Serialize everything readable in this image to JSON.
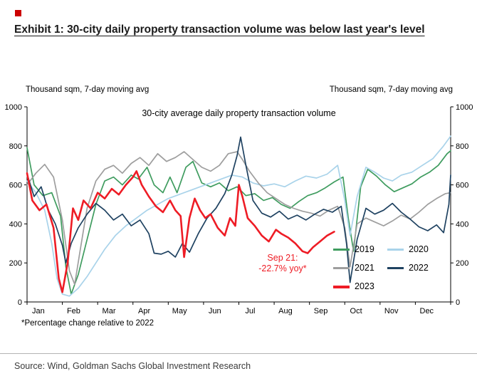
{
  "exhibit": {
    "bullet_color": "#cc0000",
    "title": "Exhibit 1: 30-city daily property transaction volume was below last year's level"
  },
  "axis_caption_left": "Thousand sqm, 7-day moving avg",
  "axis_caption_right": "Thousand sqm, 7-day moving avg",
  "footnote": "*Percentage change relative to 2022",
  "source": "Source: Wind, Goldman Sachs Global Investment Research",
  "chart_data": {
    "type": "line",
    "title": "30-city average daily property transaction volume",
    "x_unit": "month-of-year (0 = Jan 1, 12 = Dec 31)",
    "x_tick_labels": [
      "Jan",
      "Feb",
      "Mar",
      "Apr",
      "May",
      "Jun",
      "Jul",
      "Aug",
      "Sep",
      "Oct",
      "Nov",
      "Dec"
    ],
    "ylim": [
      0,
      1000
    ],
    "y_ticks": [
      0,
      200,
      400,
      600,
      800,
      1000
    ],
    "legend_position": "inside-bottom-right",
    "grid": false,
    "annotation": {
      "lines": [
        "Sep 21:",
        "-22.7% yoy*"
      ],
      "color": "#ee1c25",
      "x": 7.24,
      "y": 212
    },
    "series": [
      {
        "name": "2019",
        "color": "#3f9c5f",
        "width": 1.7,
        "x": [
          0,
          0.2,
          0.45,
          0.7,
          0.95,
          1.1,
          1.25,
          1.45,
          1.7,
          1.95,
          2.2,
          2.45,
          2.7,
          2.95,
          3.15,
          3.4,
          3.6,
          3.85,
          4.05,
          4.25,
          4.5,
          4.7,
          4.95,
          5.2,
          5.45,
          5.7,
          5.95,
          6.2,
          6.45,
          6.7,
          6.95,
          7.2,
          7.45,
          7.7,
          7.95,
          8.2,
          8.45,
          8.7,
          8.95,
          9.1,
          9.25,
          9.45,
          9.65,
          9.9,
          10.15,
          10.4,
          10.65,
          10.9,
          11.15,
          11.4,
          11.65,
          11.9,
          12
        ],
        "values": [
          790,
          600,
          545,
          560,
          440,
          180,
          40,
          140,
          320,
          500,
          620,
          640,
          600,
          650,
          630,
          690,
          600,
          560,
          640,
          560,
          690,
          720,
          610,
          590,
          610,
          570,
          590,
          545,
          555,
          520,
          535,
          500,
          480,
          515,
          545,
          560,
          585,
          615,
          640,
          430,
          260,
          590,
          680,
          645,
          600,
          565,
          585,
          605,
          640,
          665,
          700,
          760,
          775
        ]
      },
      {
        "name": "2020",
        "color": "#a9d3ea",
        "width": 1.7,
        "x": [
          0,
          0.25,
          0.5,
          0.7,
          0.85,
          1.0,
          1.2,
          1.45,
          1.7,
          1.95,
          2.2,
          2.5,
          2.8,
          3.1,
          3.4,
          3.7,
          4.0,
          4.3,
          4.6,
          4.9,
          5.2,
          5.5,
          5.8,
          6.1,
          6.4,
          6.7,
          7.0,
          7.3,
          7.6,
          7.9,
          8.2,
          8.5,
          8.8,
          9.0,
          9.15,
          9.35,
          9.6,
          9.85,
          10.1,
          10.35,
          10.6,
          10.9,
          11.2,
          11.5,
          11.8,
          12
        ],
        "values": [
          620,
          560,
          470,
          300,
          120,
          40,
          30,
          70,
          130,
          200,
          270,
          340,
          390,
          430,
          470,
          500,
          530,
          550,
          570,
          590,
          610,
          630,
          650,
          640,
          610,
          595,
          605,
          590,
          620,
          645,
          635,
          655,
          700,
          520,
          340,
          540,
          690,
          665,
          635,
          620,
          650,
          665,
          700,
          735,
          800,
          850
        ]
      },
      {
        "name": "2021",
        "color": "#9e9e9e",
        "width": 1.7,
        "x": [
          0,
          0.25,
          0.5,
          0.75,
          1.0,
          1.2,
          1.35,
          1.5,
          1.7,
          1.95,
          2.2,
          2.45,
          2.7,
          2.95,
          3.2,
          3.45,
          3.7,
          3.95,
          4.2,
          4.45,
          4.7,
          4.95,
          5.2,
          5.45,
          5.7,
          5.95,
          6.1,
          6.3,
          6.55,
          6.8,
          7.05,
          7.3,
          7.55,
          7.8,
          8.05,
          8.3,
          8.55,
          8.8,
          9.0,
          9.15,
          9.35,
          9.6,
          9.85,
          10.1,
          10.35,
          10.6,
          10.85,
          11.1,
          11.35,
          11.6,
          11.85,
          12
        ],
        "values": [
          600,
          660,
          705,
          640,
          420,
          160,
          90,
          260,
          480,
          620,
          680,
          700,
          660,
          710,
          740,
          700,
          760,
          720,
          740,
          770,
          730,
          690,
          670,
          700,
          760,
          770,
          730,
          670,
          610,
          560,
          530,
          500,
          480,
          465,
          455,
          440,
          470,
          490,
          380,
          180,
          400,
          430,
          410,
          390,
          415,
          445,
          425,
          460,
          500,
          530,
          555,
          560
        ]
      },
      {
        "name": "2022",
        "color": "#1f4261",
        "width": 1.7,
        "x": [
          0,
          0.2,
          0.4,
          0.6,
          0.8,
          1.0,
          1.1,
          1.25,
          1.45,
          1.7,
          1.95,
          2.2,
          2.45,
          2.7,
          2.95,
          3.2,
          3.45,
          3.6,
          3.8,
          4.0,
          4.2,
          4.4,
          4.6,
          4.85,
          5.1,
          5.35,
          5.6,
          5.8,
          5.95,
          6.05,
          6.2,
          6.4,
          6.65,
          6.9,
          7.15,
          7.4,
          7.65,
          7.9,
          8.15,
          8.4,
          8.65,
          8.9,
          9.05,
          9.15,
          9.35,
          9.6,
          9.85,
          10.1,
          10.35,
          10.6,
          10.85,
          11.1,
          11.35,
          11.6,
          11.8,
          11.95,
          12
        ],
        "values": [
          655,
          540,
          590,
          470,
          400,
          290,
          200,
          300,
          380,
          450,
          505,
          470,
          420,
          450,
          390,
          420,
          350,
          250,
          245,
          260,
          230,
          300,
          255,
          350,
          430,
          480,
          555,
          650,
          750,
          845,
          700,
          520,
          455,
          435,
          465,
          425,
          445,
          420,
          450,
          475,
          460,
          490,
          300,
          100,
          320,
          480,
          450,
          470,
          505,
          460,
          425,
          385,
          365,
          395,
          355,
          500,
          650
        ]
      },
      {
        "name": "2023",
        "color": "#ee1c25",
        "width": 2.6,
        "x": [
          0,
          0.15,
          0.35,
          0.55,
          0.75,
          0.9,
          1.0,
          1.15,
          1.3,
          1.45,
          1.6,
          1.8,
          2.0,
          2.2,
          2.4,
          2.6,
          2.8,
          3.0,
          3.1,
          3.25,
          3.45,
          3.65,
          3.85,
          4.05,
          4.2,
          4.35,
          4.45,
          4.6,
          4.75,
          4.9,
          5.05,
          5.2,
          5.4,
          5.6,
          5.75,
          5.9,
          6.0,
          6.1,
          6.25,
          6.45,
          6.65,
          6.85,
          7.05,
          7.2,
          7.4,
          7.6,
          7.8,
          7.95,
          8.1,
          8.3,
          8.5,
          8.7
        ],
        "values": [
          660,
          520,
          470,
          500,
          380,
          120,
          50,
          200,
          480,
          420,
          520,
          480,
          560,
          530,
          580,
          550,
          600,
          640,
          670,
          600,
          540,
          490,
          460,
          520,
          470,
          440,
          230,
          430,
          530,
          470,
          430,
          450,
          380,
          340,
          430,
          390,
          600,
          540,
          430,
          390,
          340,
          310,
          370,
          350,
          330,
          300,
          260,
          250,
          280,
          310,
          340,
          360
        ]
      }
    ]
  }
}
